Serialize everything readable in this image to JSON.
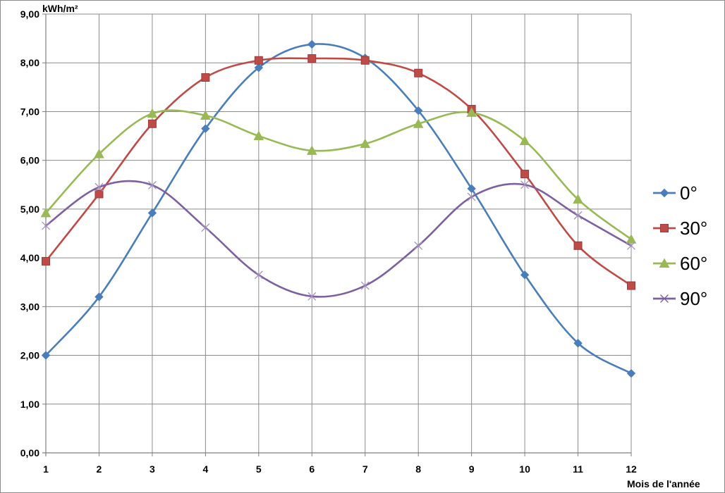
{
  "chart_data": {
    "type": "line",
    "title": "",
    "xlabel": "Mois de l'année",
    "ylabel": "kWh/m²",
    "categories": [
      "1",
      "2",
      "3",
      "4",
      "5",
      "6",
      "7",
      "8",
      "9",
      "10",
      "11",
      "12"
    ],
    "x": [
      1,
      2,
      3,
      4,
      5,
      6,
      7,
      8,
      9,
      10,
      11,
      12
    ],
    "ylim": [
      0,
      9
    ],
    "yticks": [
      "0,00",
      "1,00",
      "2,00",
      "3,00",
      "4,00",
      "5,00",
      "6,00",
      "7,00",
      "8,00",
      "9,00"
    ],
    "ytick_values": [
      0,
      1,
      2,
      3,
      4,
      5,
      6,
      7,
      8,
      9
    ],
    "grid": true,
    "smooth": true,
    "legend_position": "right",
    "series": [
      {
        "name": "0°",
        "color": "#4a7ebb",
        "marker": "diamond",
        "values": [
          2.0,
          3.2,
          4.92,
          6.65,
          7.9,
          8.38,
          8.1,
          7.02,
          5.42,
          3.65,
          2.25,
          1.63
        ]
      },
      {
        "name": "30°",
        "color": "#be4b48",
        "marker": "square",
        "values": [
          3.93,
          5.31,
          6.75,
          7.7,
          8.05,
          8.09,
          8.05,
          7.79,
          7.05,
          5.72,
          4.25,
          3.43
        ]
      },
      {
        "name": "60°",
        "color": "#98b954",
        "marker": "triangle",
        "values": [
          4.92,
          6.13,
          6.96,
          6.92,
          6.5,
          6.2,
          6.34,
          6.75,
          6.98,
          6.4,
          5.2,
          4.38
        ]
      },
      {
        "name": "90°",
        "color": "#7d60a0",
        "marker": "cross",
        "values": [
          4.66,
          5.45,
          5.49,
          4.62,
          3.65,
          3.21,
          3.43,
          4.25,
          5.25,
          5.5,
          4.87,
          4.25
        ]
      }
    ]
  }
}
